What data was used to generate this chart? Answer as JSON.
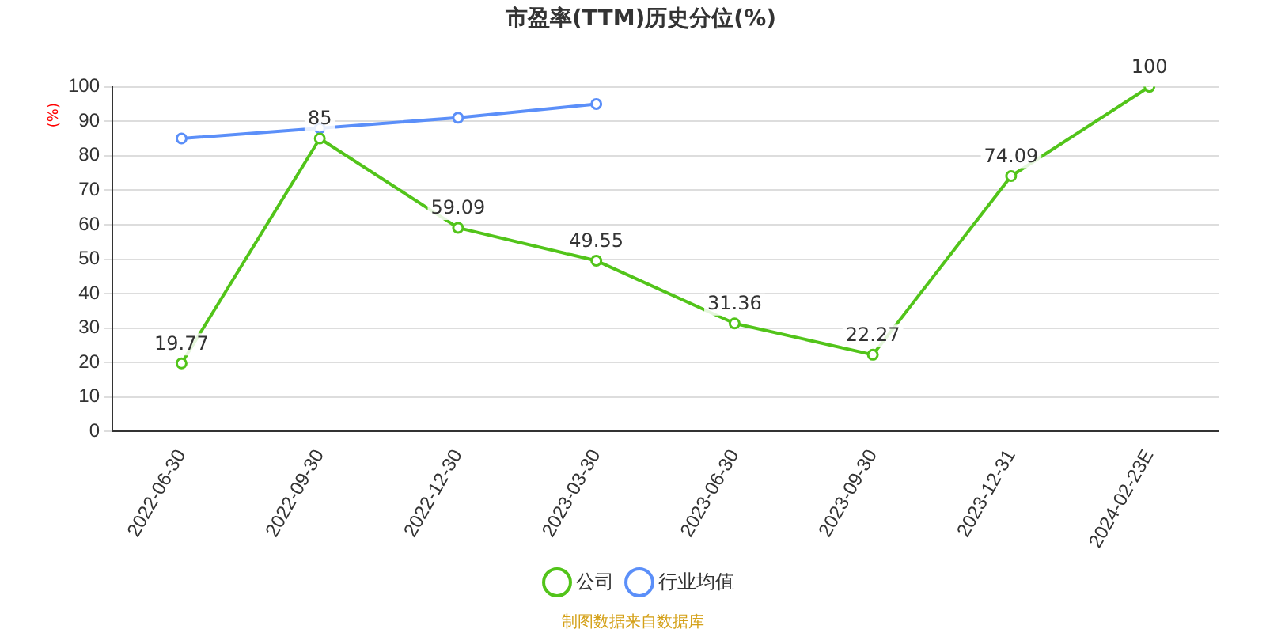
{
  "chart_data": {
    "type": "line",
    "title": "市盈率(TTM)历史分位(%)",
    "ylabel": "(%)",
    "categories": [
      "2022-06-30",
      "2022-09-30",
      "2022-12-30",
      "2023-03-30",
      "2023-06-30",
      "2023-09-30",
      "2023-12-31",
      "2024-02-23E"
    ],
    "series": [
      {
        "name": "公司",
        "color": "#52c41a",
        "values": [
          19.77,
          85,
          59.09,
          49.55,
          31.36,
          22.27,
          74.09,
          100
        ],
        "value_labels": [
          "19.77",
          "85",
          "59.09",
          "49.55",
          "31.36",
          "22.27",
          "74.09",
          "100"
        ]
      },
      {
        "name": "行业均值",
        "color": "#5b8ff9",
        "values": [
          85,
          88,
          91,
          95,
          null,
          null,
          null,
          null
        ]
      }
    ],
    "ylim": [
      0,
      100
    ],
    "yticks": [
      0,
      10,
      20,
      30,
      40,
      50,
      60,
      70,
      80,
      90,
      100
    ],
    "grid": "y",
    "legend": "bottom",
    "marker": "circle",
    "line_style": "solid",
    "annotations": [
      "制图数据来自数据库"
    ]
  }
}
